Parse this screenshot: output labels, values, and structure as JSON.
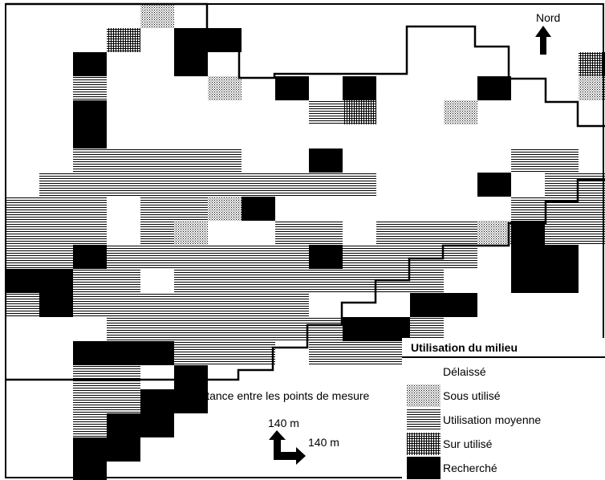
{
  "north_label": "Nord",
  "scale": {
    "caption": "Distance entre les points de mesure",
    "vertical_label": "140 m",
    "horizontal_label": "140 m"
  },
  "legend": {
    "title": "Utilisation du milieu",
    "items": [
      {
        "label": "Délaissé",
        "pattern": "blank"
      },
      {
        "label": "Sous utilisé",
        "pattern": "stipple"
      },
      {
        "label": "Utilisation moyenne",
        "pattern": "hlines"
      },
      {
        "label": "Sur utilisé",
        "pattern": "grid"
      },
      {
        "label": "Recherché",
        "pattern": "solid"
      }
    ]
  },
  "colors": {
    "ink": "#000000",
    "paper": "#ffffff"
  },
  "grid": {
    "rows": [
      "....SD..................",
      "...GDXB.................",
      "..XDDX...........G......",
      "..H.DDS.XDXDD.XDDSDG.....",
      "..X.DDD..HGDDSDDDDD..H..",
      "..X..DD.......DDD.DDHDD.",
      "..HHHHH.DXDDD..HH.XGXDH.",
      ".HHHHHHHHHH...XDHHHDXDD.",
      "HHH.HHSXDDDDD.DHHHHDDDD.",
      "HHH.HS..HH.HHHSXHHHS....",
      "HHXHHHHHHXHHHH.XXD......",
      "XXHHDHHHHHHHH..XX.......",
      "HXHHHHHHH.D.XX..........",
      "...HHHHHHHXXH...........",
      "..XXXHHH.HHHXH..........",
      "..HH.X..................",
      "..HHXX..................",
      "..HXX...................",
      "..XX....................",
      "..X....................."
    ]
  }
}
